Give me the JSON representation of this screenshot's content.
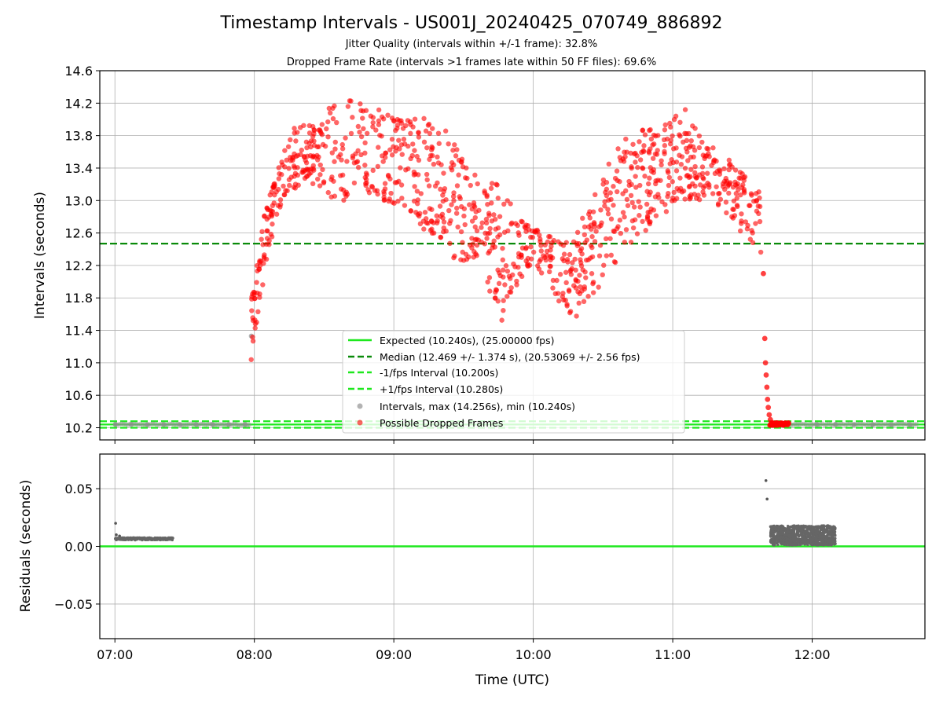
{
  "chart_data": [
    {
      "type": "scatter",
      "title": "Timestamp Intervals - US001J_20240425_070749_886892",
      "subtitles": [
        "Jitter Quality (intervals within +/-1 frame): 32.8%",
        "Dropped Frame Rate (intervals >1 frames late within 50 FF files): 69.6%"
      ],
      "xlabel": "",
      "ylabel": "Intervals (seconds)",
      "xlim_minutes": [
        413.5,
        768.5
      ],
      "ylim": [
        10.05,
        14.6
      ],
      "x_ticks": [
        {
          "value": 420,
          "label": "07:00"
        },
        {
          "value": 480,
          "label": "08:00"
        },
        {
          "value": 540,
          "label": "09:00"
        },
        {
          "value": 600,
          "label": "10:00"
        },
        {
          "value": 660,
          "label": "11:00"
        },
        {
          "value": 720,
          "label": "12:00"
        }
      ],
      "y_ticks": [
        10.2,
        10.6,
        11.0,
        11.4,
        11.8,
        12.2,
        12.6,
        13.0,
        13.4,
        13.8,
        14.2,
        14.6
      ],
      "y_tick_labels": [
        "10.2",
        "10.6",
        "11.0",
        "11.4",
        "11.8",
        "12.2",
        "12.6",
        "13.0",
        "13.4",
        "13.8",
        "14.2",
        "14.6"
      ],
      "grid": true,
      "legend_position": "lower-center",
      "lines": [
        {
          "name": "Expected (10.240s), (25.00000 fps)",
          "y": 10.24,
          "style": "solid",
          "color": "#1ee81e"
        },
        {
          "name": "Median (12.469 +/- 1.374 s), (20.53069 +/- 2.56 fps)",
          "y": 12.469,
          "style": "dashed",
          "color": "#0a8a0a"
        },
        {
          "name": "-1/fps Interval (10.200s)",
          "y": 10.2,
          "style": "dashed",
          "color": "#1ee81e"
        },
        {
          "name": "+1/fps Interval (10.280s)",
          "y": 10.28,
          "style": "dashed",
          "color": "#1ee81e"
        }
      ],
      "series": [
        {
          "name": "Intervals, max (14.256s), min (10.240s)",
          "color": "#808080",
          "points": [
            [
              420.2,
              10.24
            ],
            [
              427,
              10.24
            ],
            [
              434,
              10.24
            ],
            [
              441,
              10.24
            ],
            [
              448,
              10.24
            ],
            [
              455,
              10.24
            ],
            [
              462,
              10.24
            ],
            [
              469,
              10.24
            ],
            [
              476,
              10.24
            ],
            [
              478.7,
              11.33
            ],
            [
              722,
              10.24
            ],
            [
              730,
              10.24
            ],
            [
              738,
              10.24
            ],
            [
              746,
              10.24
            ],
            [
              754,
              10.24
            ],
            [
              762,
              10.24
            ]
          ]
        },
        {
          "name": "Possible Dropped Frames",
          "color": "#ff0000",
          "envelope_min": [
            [
              478.5,
              11.0
            ],
            [
              481,
              11.5
            ],
            [
              484,
              12.0
            ],
            [
              488,
              12.6
            ],
            [
              492,
              13.0
            ],
            [
              497,
              13.1
            ],
            [
              505,
              13.2
            ],
            [
              515,
              13.0
            ],
            [
              525,
              13.0
            ],
            [
              535,
              13.0
            ],
            [
              545,
              12.8
            ],
            [
              555,
              12.6
            ],
            [
              565,
              12.3
            ],
            [
              573,
              12.2
            ],
            [
              580,
              12.0
            ],
            [
              585,
              11.4
            ],
            [
              592,
              11.9
            ],
            [
              598,
              12.1
            ],
            [
              605,
              12.1
            ],
            [
              612,
              11.7
            ],
            [
              618,
              11.5
            ],
            [
              625,
              11.8
            ],
            [
              632,
              12.1
            ],
            [
              640,
              12.4
            ],
            [
              648,
              12.6
            ],
            [
              655,
              12.8
            ],
            [
              665,
              13.0
            ],
            [
              675,
              13.0
            ],
            [
              685,
              12.8
            ],
            [
              692,
              12.5
            ],
            [
              698,
              12.3
            ]
          ],
          "envelope_max": [
            [
              478.5,
              11.8
            ],
            [
              481,
              12.2
            ],
            [
              484,
              12.8
            ],
            [
              488,
              13.2
            ],
            [
              492,
              13.6
            ],
            [
              497,
              13.9
            ],
            [
              505,
              14.0
            ],
            [
              515,
              14.2
            ],
            [
              525,
              14.25
            ],
            [
              535,
              14.1
            ],
            [
              545,
              14.0
            ],
            [
              555,
              14.1
            ],
            [
              565,
              13.8
            ],
            [
              573,
              13.4
            ],
            [
              580,
              13.3
            ],
            [
              585,
              13.2
            ],
            [
              592,
              12.9
            ],
            [
              598,
              12.7
            ],
            [
              605,
              12.6
            ],
            [
              612,
              12.5
            ],
            [
              618,
              12.6
            ],
            [
              625,
              13.1
            ],
            [
              632,
              13.5
            ],
            [
              640,
              13.8
            ],
            [
              648,
              13.9
            ],
            [
              655,
              13.9
            ],
            [
              665,
              14.15
            ],
            [
              675,
              13.7
            ],
            [
              685,
              13.5
            ],
            [
              692,
              13.3
            ],
            [
              698,
              13.1
            ]
          ],
          "tail_points": [
            [
              699.0,
              12.1
            ],
            [
              699.6,
              11.3
            ],
            [
              699.9,
              11.0
            ],
            [
              700.2,
              10.85
            ],
            [
              700.5,
              10.7
            ],
            [
              700.8,
              10.55
            ],
            [
              701.1,
              10.45
            ],
            [
              701.5,
              10.36
            ],
            [
              702.0,
              10.3
            ],
            [
              702.6,
              10.26
            ],
            [
              703.5,
              10.25
            ],
            [
              704.5,
              10.25
            ],
            [
              705.5,
              10.25
            ],
            [
              706.5,
              10.25
            ],
            [
              707.5,
              10.25
            ],
            [
              708.5,
              10.25
            ],
            [
              709.8,
              10.25
            ]
          ]
        }
      ]
    },
    {
      "type": "scatter",
      "title": "",
      "xlabel": "Time (UTC)",
      "ylabel": "Residuals (seconds)",
      "xlim_minutes": [
        413.5,
        768.5
      ],
      "ylim": [
        -0.08,
        0.08
      ],
      "y_ticks": [
        -0.05,
        0.0,
        0.05
      ],
      "y_tick_labels": [
        "−0.05",
        "0.00",
        "0.05"
      ],
      "grid": true,
      "zero_line": {
        "y": 0.0,
        "color": "#1ee81e"
      },
      "series": [
        {
          "name": "",
          "color": "#555555",
          "points": [
            [
              420.3,
              0.02
            ],
            [
              420.6,
              0.01
            ],
            [
              421.0,
              0.007
            ],
            [
              422.0,
              0.009
            ],
            [
              700.1,
              0.057
            ],
            [
              700.6,
              0.041
            ]
          ],
          "clusters": [
            {
              "x_range": [
                420.2,
                445.0
              ],
              "y_range": [
                0.004,
                0.01
              ]
            },
            {
              "x_range": [
                702.0,
                730.0
              ],
              "y_range": [
                0.001,
                0.018
              ]
            }
          ]
        }
      ]
    }
  ]
}
